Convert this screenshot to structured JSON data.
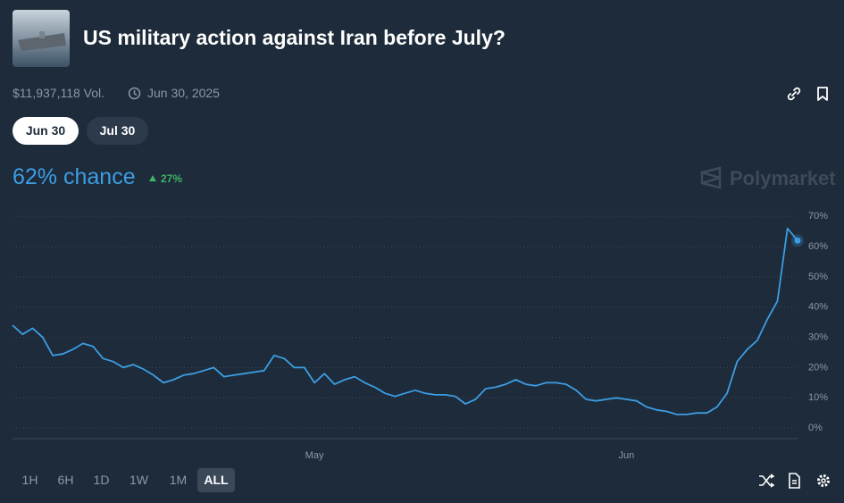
{
  "header": {
    "title": "US military action against Iran before July?",
    "volume": "$11,937,118 Vol.",
    "end_date": "Jun 30, 2025"
  },
  "outcome_tabs": [
    "Jun 30",
    "Jul 30"
  ],
  "headline": {
    "chance": "62% chance",
    "change": "27%",
    "brand": "Polymarket"
  },
  "chart_data": {
    "type": "line",
    "categories": [
      null,
      null,
      null,
      null,
      null,
      null,
      null,
      null,
      null,
      null,
      null,
      null,
      null,
      null,
      null,
      null,
      null,
      null,
      null,
      null,
      null,
      null,
      null,
      null,
      null,
      null,
      null,
      null,
      null,
      null,
      "May",
      null,
      null,
      null,
      null,
      null,
      null,
      null,
      null,
      null,
      null,
      null,
      null,
      null,
      null,
      null,
      null,
      null,
      null,
      null,
      null,
      null,
      null,
      null,
      null,
      null,
      null,
      null,
      null,
      null,
      null,
      "Jun",
      null,
      null,
      null,
      null,
      null,
      null,
      null,
      null,
      null,
      null,
      null,
      null,
      null,
      null,
      null,
      null,
      null
    ],
    "values": [
      34,
      31,
      33,
      30,
      24,
      24.5,
      26,
      28,
      27,
      23,
      22,
      20,
      21,
      19.5,
      17.5,
      15,
      16,
      17.5,
      18,
      19,
      20,
      17,
      17.5,
      18,
      18.5,
      19,
      24,
      23,
      20,
      20,
      15,
      18,
      14.5,
      16,
      17,
      15,
      13.5,
      11.5,
      10.5,
      11.5,
      12.5,
      11.5,
      11,
      11,
      10.5,
      8,
      9.5,
      13,
      13.5,
      14.5,
      16,
      14.5,
      14,
      15,
      15,
      14.5,
      12.5,
      9.5,
      9,
      9.5,
      10,
      9.5,
      9,
      7,
      6,
      5.5,
      4.5,
      4.5,
      5,
      5,
      7,
      11.5,
      22,
      26,
      29,
      36,
      42,
      66,
      62
    ],
    "color": "#3d9de3",
    "ylim": [
      -3.5,
      73
    ],
    "yticks": [
      {
        "value": 0,
        "label": "0%"
      },
      {
        "value": 10,
        "label": "10%"
      },
      {
        "value": 20,
        "label": "20%"
      },
      {
        "value": 30,
        "label": "30%"
      },
      {
        "value": 40,
        "label": "40%"
      },
      {
        "value": 50,
        "label": "50%"
      },
      {
        "value": 60,
        "label": "60%"
      },
      {
        "value": 70,
        "label": "70%"
      }
    ],
    "grid": true
  },
  "range_buttons": [
    "1H",
    "6H",
    "1D",
    "1W",
    "1M",
    "ALL"
  ],
  "active_range": 5
}
